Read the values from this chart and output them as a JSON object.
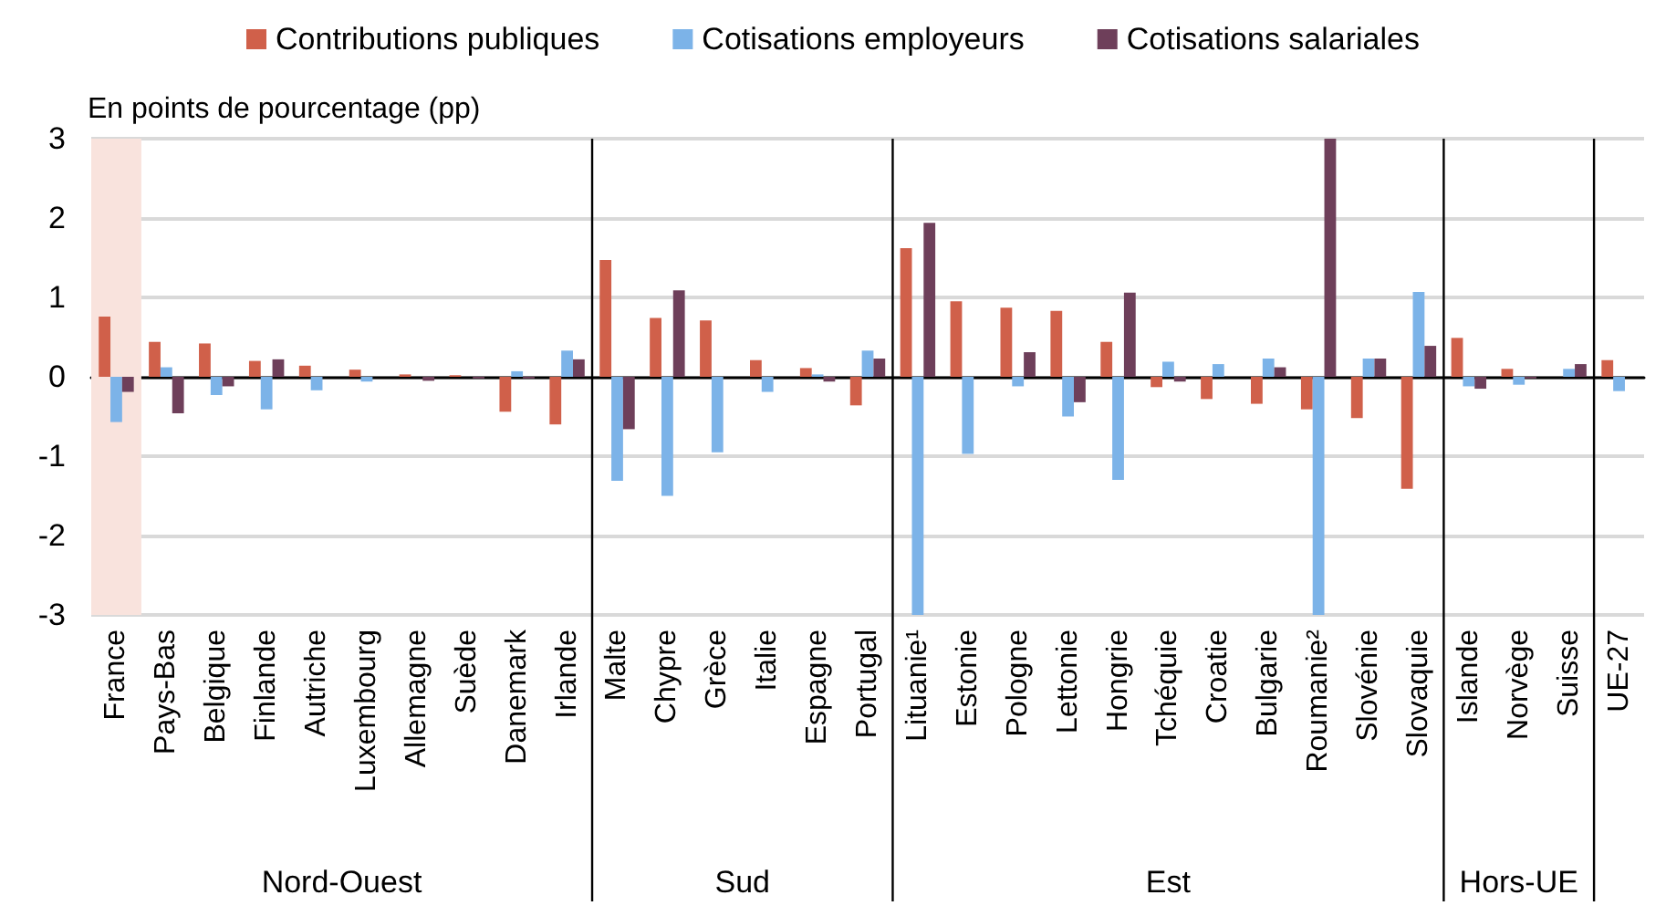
{
  "chart_data": {
    "type": "bar",
    "ylabel": "En points de pourcentage (pp)",
    "categories": [
      "France",
      "Pays-Bas",
      "Belgique",
      "Finlande",
      "Autriche",
      "Luxembourg",
      "Allemagne",
      "Suède",
      "Danemark",
      "Irlande",
      "Malte",
      "Chypre",
      "Grèce",
      "Italie",
      "Espagne",
      "Portugal",
      "Lituanie¹",
      "Estonie",
      "Pologne",
      "Lettonie",
      "Hongrie",
      "Tchéquie",
      "Croatie",
      "Bulgarie",
      "Roumanie²",
      "Slovénie",
      "Slovaquie",
      "Islande",
      "Norvège",
      "Suisse",
      "UE-27"
    ],
    "series": [
      {
        "name": "Contributions publiques",
        "color": "#d0604a",
        "values": [
          0.76,
          0.44,
          0.42,
          0.2,
          0.14,
          0.09,
          0.03,
          0.02,
          -0.44,
          -0.6,
          1.47,
          0.74,
          0.71,
          0.21,
          0.11,
          -0.36,
          1.62,
          0.95,
          0.87,
          0.83,
          0.44,
          -0.13,
          -0.28,
          -0.34,
          -0.41,
          -0.52,
          -1.41,
          0.49,
          0.1,
          0,
          0.21
        ]
      },
      {
        "name": "Cotisations employeurs",
        "color": "#7cb3e8",
        "values": [
          -0.57,
          0.12,
          -0.23,
          -0.41,
          -0.17,
          -0.06,
          0,
          0,
          0.07,
          0.33,
          -1.31,
          -1.5,
          -0.95,
          -0.19,
          0.03,
          0.33,
          -3,
          -0.97,
          -0.12,
          -0.5,
          -1.3,
          0.19,
          0.16,
          0.23,
          -3,
          0.23,
          1.07,
          -0.12,
          -0.1,
          0.1,
          -0.18
        ]
      },
      {
        "name": "Cotisations salariales",
        "color": "#6e3f5a",
        "values": [
          -0.19,
          -0.46,
          -0.12,
          0.22,
          0,
          0,
          -0.05,
          -0.02,
          -0.02,
          0.22,
          -0.66,
          1.09,
          0,
          0,
          -0.06,
          0.23,
          1.94,
          0,
          0.31,
          -0.32,
          1.06,
          -0.06,
          0,
          0.12,
          3,
          0.23,
          0.39,
          -0.15,
          -0.02,
          0.16,
          0
        ]
      }
    ],
    "ylim": [
      -3,
      3
    ],
    "yticks": [
      -3,
      -2,
      -1,
      0,
      1,
      2,
      3
    ],
    "grid": "y",
    "legend": "top",
    "bands": [
      {
        "axis": "x",
        "from": "France",
        "to": "France",
        "color": "#f9e3dd"
      }
    ],
    "annotations": [
      "Nord-Ouest",
      "Sud",
      "Est",
      "Hors-UE"
    ]
  }
}
